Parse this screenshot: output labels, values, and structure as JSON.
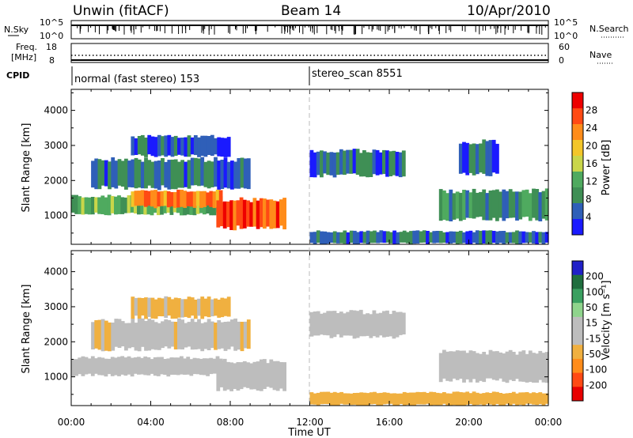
{
  "header": {
    "station": "Unwin (fitACF)",
    "beam": "Beam 14",
    "date": "10/Apr/2010"
  },
  "status_panels": {
    "nsky_label": "N.Sky",
    "nsky_ticks": [
      "10^5",
      "10^0"
    ],
    "nsearch_label": "N.Search",
    "nsearch_ticks": [
      "10^5",
      "10^0"
    ],
    "freq_label_line1": "Freq.",
    "freq_label_line2": "[MHz]",
    "freq_ticks": [
      "18",
      "8"
    ],
    "nave_label": "Nave",
    "nave_ticks": [
      "60",
      "0"
    ],
    "cpid_label": "CPID",
    "cpid_segments": [
      {
        "name": "normal (fast stereo) 153",
        "start_hour": 0
      },
      {
        "name": "stereo_scan 8551",
        "start_hour": 12
      }
    ]
  },
  "colors": {
    "power": [
      "#1a1aff",
      "#2f5fb8",
      "#3f8f55",
      "#4faa5f",
      "#c9d64a",
      "#f3c62a",
      "#ff8c1a",
      "#ff4a14",
      "#ee0000"
    ],
    "velocity": [
      "#2020c8",
      "#1f6e3e",
      "#3aa060",
      "#8fd48c",
      "#bdbdbd",
      "#bdbdbd",
      "#f0b040",
      "#ff8c1a",
      "#ff4a14",
      "#e80000"
    ]
  },
  "chart_data": [
    {
      "type": "heatmap",
      "name": "power",
      "xlabel": "",
      "ylabel": "Slant Range [km]",
      "xlim": [
        0,
        24
      ],
      "ylim": [
        180,
        4600
      ],
      "yticks": [
        1000,
        2000,
        3000,
        4000
      ],
      "colorbar": {
        "label": "Power [dB]",
        "range": [
          0,
          32
        ],
        "ticks": [
          4,
          8,
          12,
          16,
          20,
          24,
          28
        ]
      },
      "regions": [
        {
          "t_start": 0.0,
          "t_end": 7.6,
          "r_lo": 1050,
          "r_hi": 1550,
          "level": 12
        },
        {
          "t_start": 3.0,
          "t_end": 7.6,
          "r_lo": 1250,
          "r_hi": 1700,
          "level": 24
        },
        {
          "t_start": 1.0,
          "t_end": 9.0,
          "r_lo": 1800,
          "r_hi": 2600,
          "level": 7
        },
        {
          "t_start": 7.3,
          "t_end": 10.8,
          "r_lo": 650,
          "r_hi": 1450,
          "level": 27
        },
        {
          "t_start": 3.0,
          "t_end": 8.0,
          "r_lo": 2700,
          "r_hi": 3250,
          "level": 5
        },
        {
          "t_start": 12.0,
          "t_end": 16.8,
          "r_lo": 2150,
          "r_hi": 2850,
          "level": 6
        },
        {
          "t_start": 18.5,
          "t_end": 24.0,
          "r_lo": 900,
          "r_hi": 1700,
          "level": 9
        },
        {
          "t_start": 19.5,
          "t_end": 21.5,
          "r_lo": 2200,
          "r_hi": 3100,
          "level": 5
        },
        {
          "t_start": 12.0,
          "t_end": 24.0,
          "r_lo": 200,
          "r_hi": 550,
          "level": 6
        }
      ]
    },
    {
      "type": "heatmap",
      "name": "velocity",
      "xlabel": "Time UT",
      "ylabel": "Slant Range [km]",
      "xlim": [
        0,
        24
      ],
      "ylim": [
        180,
        4600
      ],
      "yticks": [
        1000,
        2000,
        3000,
        4000
      ],
      "xticks": [
        "00:00",
        "04:00",
        "08:00",
        "12:00",
        "16:00",
        "20:00",
        "00:00"
      ],
      "colorbar": {
        "label": "Velocity [m s⁻¹]",
        "range": [
          -250,
          250
        ],
        "ticks": [
          "200",
          "100",
          "50",
          "15",
          "-15",
          "-50",
          "-100",
          "-200"
        ]
      },
      "regions": [
        {
          "t_start": 0.0,
          "t_end": 7.6,
          "r_lo": 1050,
          "r_hi": 1550,
          "level": 0
        },
        {
          "t_start": 1.0,
          "t_end": 9.0,
          "r_lo": 1800,
          "r_hi": 2600,
          "level": -40
        },
        {
          "t_start": 7.3,
          "t_end": 10.8,
          "r_lo": 650,
          "r_hi": 1450,
          "level": 0
        },
        {
          "t_start": 3.0,
          "t_end": 8.0,
          "r_lo": 2700,
          "r_hi": 3250,
          "level": -60
        },
        {
          "t_start": 12.0,
          "t_end": 16.8,
          "r_lo": 2150,
          "r_hi": 2850,
          "level": 0
        },
        {
          "t_start": 18.5,
          "t_end": 24.0,
          "r_lo": 900,
          "r_hi": 1700,
          "level": 0
        },
        {
          "t_start": 12.0,
          "t_end": 24.0,
          "r_lo": 200,
          "r_hi": 550,
          "level": -80
        }
      ]
    }
  ]
}
